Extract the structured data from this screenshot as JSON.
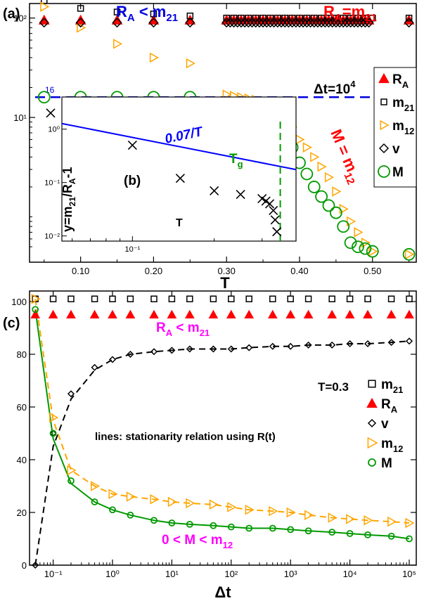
{
  "colors": {
    "RA": "#ff0000",
    "m21": "#000000",
    "m12": "#ffa500",
    "v": "#000000",
    "M": "#009900",
    "blue": "#0000dd",
    "magenta": "#ff00ff",
    "fit": "#0000ff"
  },
  "chart_data": [
    {
      "id": "a",
      "type": "scatter",
      "panel_label": "(a)",
      "xlabel": "T",
      "ylabel": "",
      "xlim": [
        0.03,
        0.56
      ],
      "ylim": [
        0.35,
        140
      ],
      "yscale": "log",
      "x_ticks": [
        "0.10",
        "0.20",
        "0.30",
        "0.40",
        "0.50"
      ],
      "y_ticks": [
        "10¹",
        "10²"
      ],
      "annotations": {
        "ra_lt_m21": "R",
        "ra_lt_m21_sub": "A",
        "ra_lt_m21_rest": " < m",
        "ra_lt_m21_sub2": "21",
        "ra_eq": "R",
        "ra_eq_sub": "A",
        "ra_eq_rest": "=m",
        "ra_eq_sub2": "21",
        "m_eq": "M = m",
        "m_eq_sub": "12",
        "dt": "Δt=10",
        "dt_sup": "4",
        "hline_label": "16"
      },
      "hline": 16,
      "legend": [
        {
          "key": "RA",
          "label": "R",
          "sub": "A",
          "marker": "triangle"
        },
        {
          "key": "m21",
          "label": "m",
          "sub": "21",
          "marker": "square"
        },
        {
          "key": "m12",
          "label": "m",
          "sub": "12",
          "marker": "triangle-right"
        },
        {
          "key": "v",
          "label": "v",
          "sub": "",
          "marker": "diamond"
        },
        {
          "key": "M",
          "label": "M",
          "sub": "",
          "marker": "circle"
        }
      ],
      "series": [
        {
          "name": "R",
          "key": "RA",
          "marker": "triangle",
          "x": [
            0.05,
            0.1,
            0.15,
            0.2,
            0.25,
            0.3,
            0.305,
            0.31,
            0.315,
            0.32,
            0.325,
            0.33,
            0.335,
            0.34,
            0.345,
            0.35,
            0.355,
            0.36,
            0.365,
            0.37,
            0.375,
            0.38,
            0.385,
            0.39,
            0.395,
            0.4,
            0.405,
            0.41,
            0.415,
            0.42,
            0.425,
            0.43,
            0.435,
            0.44,
            0.445,
            0.45,
            0.455,
            0.46,
            0.465,
            0.47,
            0.475,
            0.48,
            0.485,
            0.49,
            0.495,
            0.55
          ],
          "y": [
            95,
            95,
            95,
            95,
            95,
            95,
            95,
            95,
            95,
            95,
            95,
            95,
            95,
            95,
            95,
            95,
            95,
            95,
            95,
            95,
            95,
            95,
            95,
            95,
            95,
            95,
            95,
            95,
            95,
            95,
            95,
            95,
            95,
            95,
            95,
            95,
            95,
            95,
            95,
            95,
            95,
            95,
            95,
            95,
            95,
            95
          ]
        },
        {
          "name": "m",
          "key": "m21",
          "marker": "square",
          "x": [
            0.05,
            0.1,
            0.15,
            0.2,
            0.25,
            0.3,
            0.31,
            0.32,
            0.33,
            0.34,
            0.35,
            0.36,
            0.37,
            0.38,
            0.39,
            0.4,
            0.41,
            0.42,
            0.43,
            0.44,
            0.45,
            0.46,
            0.47,
            0.48,
            0.49,
            0.5,
            0.55
          ],
          "y": [
            150,
            125,
            115,
            110,
            105,
            100,
            100,
            100,
            100,
            100,
            100,
            100,
            100,
            100,
            100,
            100,
            100,
            100,
            100,
            100,
            100,
            100,
            100,
            100,
            100,
            100,
            100
          ]
        },
        {
          "name": "m",
          "key": "m12",
          "marker": "triangle-right",
          "x": [
            0.05,
            0.1,
            0.15,
            0.2,
            0.25,
            0.3,
            0.31,
            0.32,
            0.33,
            0.34,
            0.35,
            0.36,
            0.37,
            0.38,
            0.39,
            0.4,
            0.41,
            0.42,
            0.43,
            0.44,
            0.45,
            0.46,
            0.47,
            0.48,
            0.49,
            0.5,
            0.55
          ],
          "y": [
            130,
            80,
            55,
            40,
            35,
            17,
            16.5,
            16,
            15.5,
            15,
            14.5,
            13.5,
            12,
            10,
            8,
            6,
            5,
            4,
            3.2,
            2.5,
            1.8,
            1.2,
            0.9,
            0.7,
            0.55,
            0.45,
            0.42
          ]
        },
        {
          "name": "v",
          "key": "v",
          "marker": "diamond",
          "x": [
            0.05,
            0.1,
            0.15,
            0.2,
            0.25,
            0.3,
            0.305,
            0.31,
            0.315,
            0.32,
            0.325,
            0.33,
            0.335,
            0.34,
            0.345,
            0.35,
            0.355,
            0.36,
            0.365,
            0.37,
            0.375,
            0.38,
            0.385,
            0.39,
            0.395,
            0.4,
            0.405,
            0.41,
            0.415,
            0.42,
            0.425,
            0.43,
            0.435,
            0.44,
            0.445,
            0.45,
            0.455,
            0.46,
            0.465,
            0.47,
            0.475,
            0.48,
            0.485,
            0.49,
            0.495,
            0.55
          ],
          "y": [
            90,
            90,
            90,
            90,
            90,
            90,
            90,
            90,
            90,
            90,
            90,
            90,
            90,
            90,
            90,
            90,
            90,
            90,
            90,
            90,
            90,
            90,
            90,
            90,
            90,
            90,
            90,
            90,
            90,
            90,
            90,
            90,
            90,
            90,
            90,
            90,
            90,
            90,
            90,
            90,
            90,
            90,
            90,
            90,
            90,
            90
          ]
        },
        {
          "name": "M",
          "key": "M",
          "marker": "circle",
          "x": [
            0.05,
            0.1,
            0.15,
            0.2,
            0.25,
            0.3,
            0.31,
            0.32,
            0.33,
            0.34,
            0.35,
            0.36,
            0.37,
            0.38,
            0.39,
            0.4,
            0.41,
            0.42,
            0.43,
            0.44,
            0.45,
            0.46,
            0.47,
            0.48,
            0.49,
            0.5,
            0.55
          ],
          "y": [
            16,
            16,
            16,
            16,
            16,
            13,
            12.5,
            12,
            11.5,
            11,
            10.5,
            9.5,
            8,
            6.5,
            5,
            3.5,
            2.7,
            2,
            1.6,
            1.3,
            1.1,
            0.8,
            0.55,
            0.5,
            0.48,
            0.45,
            0.42
          ]
        }
      ]
    },
    {
      "id": "b",
      "type": "scatter",
      "panel_label": "(b)",
      "xlabel": "T",
      "ylabel": "y=m",
      "ylabel_sub": "21",
      "ylabel_rest": "/R",
      "ylabel_sub2": "A",
      "ylabel_tail": "-1",
      "xlim": [
        0.055,
        0.4
      ],
      "ylim": [
        0.008,
        4.0
      ],
      "xscale": "log",
      "yscale": "log",
      "x_ticks": [
        "10⁻¹"
      ],
      "y_ticks": [
        "10⁻²",
        "10⁻¹",
        "10⁰"
      ],
      "fit_label": "0.07/T",
      "tg_label": "T",
      "tg_label_sub": "g",
      "tg": 0.35,
      "fit_coefficient": 0.07,
      "series": [
        {
          "name": "",
          "marker": "x",
          "x": [
            0.05,
            0.1,
            0.15,
            0.2,
            0.25,
            0.3,
            0.31,
            0.32,
            0.33,
            0.335,
            0.34
          ],
          "y": [
            2.0,
            0.5,
            0.12,
            0.07,
            0.06,
            0.05,
            0.045,
            0.04,
            0.03,
            0.02,
            0.012
          ]
        }
      ]
    },
    {
      "id": "c",
      "type": "scatter",
      "panel_label": "(c)",
      "xlabel": "Δt",
      "ylabel": "",
      "xscale": "log",
      "xlim": [
        0.04,
        100000
      ],
      "ylim": [
        0,
        104
      ],
      "x_ticks": [
        "10⁻¹",
        "10⁰",
        "10¹",
        "10²",
        "10³",
        "10⁴",
        "10⁵"
      ],
      "y_ticks": [
        "0",
        "20",
        "40",
        "60",
        "80",
        "100"
      ],
      "annotations": {
        "t_label": "T=0.3",
        "ra_lt": "R",
        "ra_lt_sub": "A",
        "ra_lt_rest": " < m",
        "ra_lt_sub2": "21",
        "lines_note": "lines: stationarity relation using R(t)",
        "m_lt": "0 < M < m",
        "m_lt_sub": "12"
      },
      "legend": [
        {
          "key": "m21",
          "label": "m",
          "sub": "21",
          "marker": "square"
        },
        {
          "key": "RA",
          "label": "R",
          "sub": "A",
          "marker": "triangle"
        },
        {
          "key": "v",
          "label": "v",
          "sub": "",
          "marker": "diamond"
        },
        {
          "key": "m12",
          "label": "m",
          "sub": "12",
          "marker": "triangle-right"
        },
        {
          "key": "M",
          "label": "M",
          "sub": "",
          "marker": "circle"
        }
      ],
      "series": [
        {
          "name": "m",
          "key": "m21",
          "marker": "square",
          "x": [
            0.05,
            0.1,
            0.2,
            0.5,
            1,
            2,
            5,
            10,
            20,
            50,
            100,
            200,
            500,
            1000,
            2000,
            5000,
            10000,
            20000,
            50000,
            100000
          ],
          "y": [
            101,
            101,
            101,
            101,
            101,
            101,
            101,
            101,
            101,
            101,
            101,
            101,
            101,
            101,
            101,
            101,
            101,
            101,
            101,
            101
          ]
        },
        {
          "name": "R",
          "key": "RA",
          "marker": "triangle",
          "x": [
            0.05,
            0.1,
            0.2,
            0.5,
            1,
            2,
            5,
            10,
            20,
            50,
            100,
            200,
            500,
            1000,
            2000,
            5000,
            10000,
            20000,
            50000,
            100000
          ],
          "y": [
            95,
            95,
            95,
            95,
            95,
            95,
            95,
            95,
            95,
            95,
            95,
            95,
            95,
            95,
            95,
            95,
            95,
            95,
            95,
            95
          ]
        },
        {
          "name": "v",
          "key": "v",
          "marker": "diamond",
          "x": [
            0.05,
            0.1,
            0.2,
            0.5,
            1,
            2,
            5,
            10,
            20,
            50,
            100,
            200,
            500,
            1000,
            2000,
            5000,
            10000,
            20000,
            50000,
            100000
          ],
          "y": [
            0,
            50,
            65,
            75,
            78,
            80,
            81,
            81.5,
            82,
            82,
            82,
            82.5,
            83,
            83,
            83.5,
            83.5,
            84,
            84,
            84.5,
            85
          ]
        },
        {
          "name": "m",
          "key": "m12",
          "marker": "triangle-right",
          "x": [
            0.05,
            0.1,
            0.2,
            0.5,
            1,
            2,
            5,
            10,
            20,
            50,
            100,
            200,
            500,
            1000,
            2000,
            5000,
            10000,
            20000,
            50000,
            100000
          ],
          "y": [
            101,
            56,
            36,
            30,
            27,
            26,
            25,
            24,
            23.5,
            23,
            22,
            21,
            20.5,
            20,
            19,
            18,
            17.5,
            17,
            16.5,
            16
          ]
        },
        {
          "name": "M",
          "key": "M",
          "marker": "circle",
          "x": [
            0.05,
            0.1,
            0.2,
            0.5,
            1,
            2,
            5,
            10,
            20,
            50,
            100,
            200,
            500,
            1000,
            2000,
            5000,
            10000,
            20000,
            50000,
            100000
          ],
          "y": [
            97,
            50,
            32,
            24,
            21,
            19,
            17,
            16,
            15.5,
            15,
            14.5,
            14,
            14,
            13.5,
            13,
            12.5,
            12,
            11.5,
            11,
            10
          ]
        }
      ],
      "lines": [
        {
          "key": "v",
          "style": "dashed",
          "x": [
            0.05,
            0.1,
            0.2,
            0.5,
            1,
            2,
            5,
            10,
            20,
            50,
            100,
            200,
            500,
            1000,
            2000,
            5000,
            10000,
            20000,
            50000,
            100000
          ],
          "y": [
            0,
            45,
            63,
            74,
            78,
            80,
            81,
            81.5,
            82,
            82,
            82,
            82.5,
            83,
            83,
            83.5,
            83.5,
            84,
            84,
            84.5,
            85
          ]
        },
        {
          "key": "m12",
          "style": "dashed",
          "x": [
            0.05,
            0.1,
            0.2,
            0.5,
            1,
            2,
            5,
            10,
            20,
            50,
            100,
            200,
            500,
            1000,
            2000,
            5000,
            10000,
            20000,
            50000,
            100000
          ],
          "y": [
            101,
            55,
            36,
            30,
            27,
            26,
            25,
            24,
            23.5,
            23,
            22,
            21,
            20.5,
            20,
            19,
            18,
            17.5,
            17,
            16.5,
            16
          ]
        },
        {
          "key": "M",
          "style": "solid",
          "x": [
            0.05,
            0.1,
            0.2,
            0.5,
            1,
            2,
            5,
            10,
            20,
            50,
            100,
            200,
            500,
            1000,
            2000,
            5000,
            10000,
            20000,
            50000,
            100000
          ],
          "y": [
            97,
            48,
            31,
            24,
            21,
            19,
            17,
            16,
            15.5,
            15,
            14.5,
            14,
            14,
            13.5,
            13,
            12.5,
            12,
            11.5,
            11,
            10
          ]
        }
      ]
    }
  ]
}
